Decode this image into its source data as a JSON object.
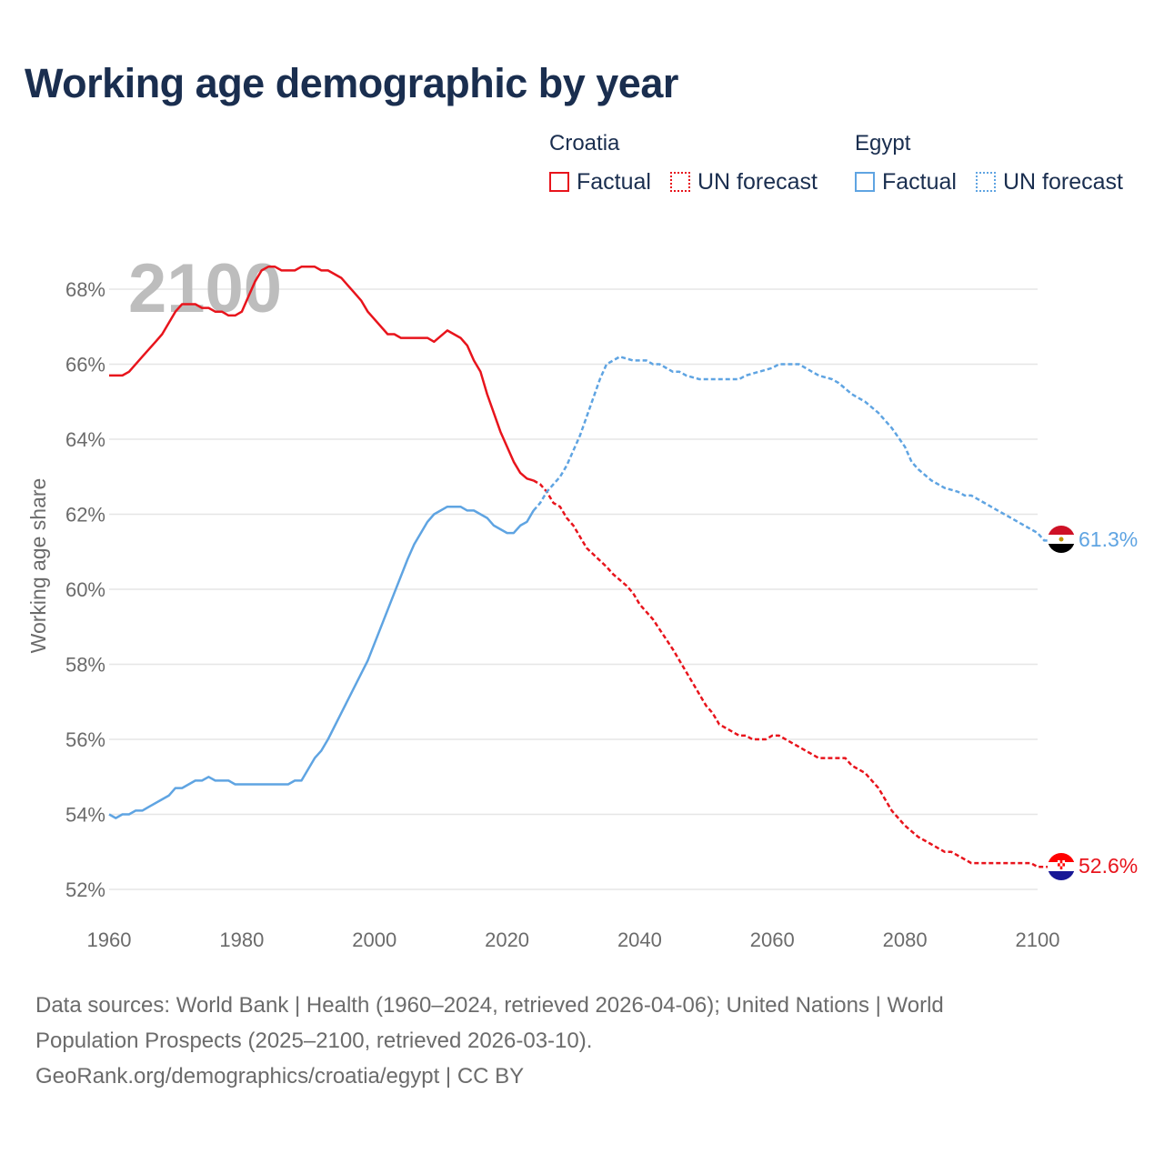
{
  "title": "Working age demographic by year",
  "legend": {
    "groups": [
      {
        "country": "Croatia",
        "color": "#e8141c",
        "factual": "Factual",
        "forecast": "UN forecast"
      },
      {
        "country": "Egypt",
        "color": "#5fa4e2",
        "factual": "Factual",
        "forecast": "UN forecast"
      }
    ]
  },
  "footer": {
    "sources": "Data sources: World Bank | Health (1960–2024, retrieved 2026-04-06); United Nations | World Population Prospects (2025–2100, retrieved 2026-03-10).",
    "link": "GeoRank.org/demographics/croatia/egypt | CC BY"
  },
  "chart_data": {
    "type": "line",
    "title": "Working age demographic by year",
    "xlabel": "",
    "ylabel": "Working age share",
    "xlim": [
      1960,
      2100
    ],
    "ylim": [
      51.5,
      69
    ],
    "x_ticks": [
      1960,
      1980,
      2000,
      2020,
      2040,
      2060,
      2080,
      2100
    ],
    "y_ticks": [
      52,
      54,
      56,
      58,
      60,
      62,
      64,
      66,
      68
    ],
    "y_tick_labels": [
      "52%",
      "54%",
      "56%",
      "58%",
      "60%",
      "62%",
      "64%",
      "66%",
      "68%"
    ],
    "grid": true,
    "current_year": "2100",
    "factual_end_year": 2024,
    "series": [
      {
        "name": "Croatia",
        "color": "#e8141c",
        "end_label": "52.6%",
        "flag": "croatia-flag",
        "points": [
          [
            1960,
            65.7
          ],
          [
            1962,
            65.7
          ],
          [
            1963,
            65.8
          ],
          [
            1965,
            66.2
          ],
          [
            1967,
            66.6
          ],
          [
            1968,
            66.8
          ],
          [
            1970,
            67.4
          ],
          [
            1971,
            67.6
          ],
          [
            1973,
            67.6
          ],
          [
            1974,
            67.5
          ],
          [
            1975,
            67.5
          ],
          [
            1976,
            67.4
          ],
          [
            1977,
            67.4
          ],
          [
            1978,
            67.3
          ],
          [
            1979,
            67.3
          ],
          [
            1980,
            67.4
          ],
          [
            1981,
            67.8
          ],
          [
            1982,
            68.2
          ],
          [
            1983,
            68.5
          ],
          [
            1984,
            68.6
          ],
          [
            1985,
            68.6
          ],
          [
            1986,
            68.5
          ],
          [
            1988,
            68.5
          ],
          [
            1989,
            68.6
          ],
          [
            1991,
            68.6
          ],
          [
            1992,
            68.5
          ],
          [
            1993,
            68.5
          ],
          [
            1995,
            68.3
          ],
          [
            1997,
            67.9
          ],
          [
            1998,
            67.7
          ],
          [
            1999,
            67.4
          ],
          [
            2002,
            66.8
          ],
          [
            2003,
            66.8
          ],
          [
            2004,
            66.7
          ],
          [
            2008,
            66.7
          ],
          [
            2009,
            66.6
          ],
          [
            2011,
            66.9
          ],
          [
            2013,
            66.7
          ],
          [
            2014,
            66.5
          ],
          [
            2015,
            66.1
          ],
          [
            2016,
            65.8
          ],
          [
            2017,
            65.2
          ],
          [
            2018,
            64.7
          ],
          [
            2019,
            64.2
          ],
          [
            2020,
            63.8
          ],
          [
            2021,
            63.4
          ],
          [
            2022,
            63.1
          ],
          [
            2023,
            62.95
          ],
          [
            2024,
            62.9
          ],
          [
            2025,
            62.8
          ],
          [
            2026,
            62.6
          ],
          [
            2027,
            62.3
          ],
          [
            2028,
            62.2
          ],
          [
            2029,
            61.9
          ],
          [
            2030,
            61.7
          ],
          [
            2031,
            61.4
          ],
          [
            2032,
            61.1
          ],
          [
            2035,
            60.6
          ],
          [
            2036,
            60.4
          ],
          [
            2038,
            60.1
          ],
          [
            2039,
            59.9
          ],
          [
            2040,
            59.6
          ],
          [
            2042,
            59.2
          ],
          [
            2045,
            58.4
          ],
          [
            2048,
            57.5
          ],
          [
            2050,
            56.9
          ],
          [
            2051,
            56.7
          ],
          [
            2052,
            56.4
          ],
          [
            2054,
            56.2
          ],
          [
            2055,
            56.1
          ],
          [
            2056,
            56.1
          ],
          [
            2057,
            56.0
          ],
          [
            2059,
            56.0
          ],
          [
            2060,
            56.1
          ],
          [
            2061,
            56.1
          ],
          [
            2065,
            55.7
          ],
          [
            2067,
            55.5
          ],
          [
            2071,
            55.5
          ],
          [
            2072,
            55.3
          ],
          [
            2074,
            55.1
          ],
          [
            2076,
            54.7
          ],
          [
            2078,
            54.1
          ],
          [
            2080,
            53.7
          ],
          [
            2082,
            53.4
          ],
          [
            2084,
            53.2
          ],
          [
            2086,
            53.0
          ],
          [
            2087,
            53.0
          ],
          [
            2089,
            52.8
          ],
          [
            2090,
            52.7
          ],
          [
            2099,
            52.7
          ],
          [
            2100,
            52.6
          ],
          [
            2104,
            52.6
          ]
        ]
      },
      {
        "name": "Egypt",
        "color": "#5fa4e2",
        "end_label": "61.3%",
        "flag": "egypt-flag",
        "points": [
          [
            1960,
            54.0
          ],
          [
            1961,
            53.9
          ],
          [
            1962,
            54.0
          ],
          [
            1963,
            54.0
          ],
          [
            1964,
            54.1
          ],
          [
            1965,
            54.1
          ],
          [
            1966,
            54.2
          ],
          [
            1968,
            54.4
          ],
          [
            1969,
            54.5
          ],
          [
            1970,
            54.7
          ],
          [
            1971,
            54.7
          ],
          [
            1972,
            54.8
          ],
          [
            1973,
            54.9
          ],
          [
            1974,
            54.9
          ],
          [
            1975,
            55.0
          ],
          [
            1976,
            54.9
          ],
          [
            1978,
            54.9
          ],
          [
            1979,
            54.8
          ],
          [
            1987,
            54.8
          ],
          [
            1988,
            54.9
          ],
          [
            1989,
            54.9
          ],
          [
            1990,
            55.2
          ],
          [
            1991,
            55.5
          ],
          [
            1992,
            55.7
          ],
          [
            1993,
            56.0
          ],
          [
            1995,
            56.7
          ],
          [
            1997,
            57.4
          ],
          [
            1999,
            58.1
          ],
          [
            2001,
            59.0
          ],
          [
            2003,
            59.9
          ],
          [
            2005,
            60.8
          ],
          [
            2006,
            61.2
          ],
          [
            2008,
            61.8
          ],
          [
            2009,
            62.0
          ],
          [
            2010,
            62.1
          ],
          [
            2011,
            62.2
          ],
          [
            2013,
            62.2
          ],
          [
            2014,
            62.1
          ],
          [
            2015,
            62.1
          ],
          [
            2017,
            61.9
          ],
          [
            2018,
            61.7
          ],
          [
            2020,
            61.5
          ],
          [
            2021,
            61.5
          ],
          [
            2022,
            61.7
          ],
          [
            2023,
            61.8
          ],
          [
            2024,
            62.1
          ],
          [
            2025,
            62.3
          ],
          [
            2026,
            62.6
          ],
          [
            2027,
            62.8
          ],
          [
            2028,
            63.0
          ],
          [
            2029,
            63.3
          ],
          [
            2030,
            63.7
          ],
          [
            2031,
            64.1
          ],
          [
            2032,
            64.6
          ],
          [
            2033,
            65.1
          ],
          [
            2034,
            65.6
          ],
          [
            2035,
            66.0
          ],
          [
            2036,
            66.1
          ],
          [
            2037,
            66.2
          ],
          [
            2039,
            66.1
          ],
          [
            2041,
            66.1
          ],
          [
            2042,
            66.0
          ],
          [
            2043,
            66.0
          ],
          [
            2044,
            65.9
          ],
          [
            2045,
            65.8
          ],
          [
            2046,
            65.8
          ],
          [
            2047,
            65.7
          ],
          [
            2049,
            65.6
          ],
          [
            2050,
            65.6
          ],
          [
            2054,
            65.6
          ],
          [
            2055,
            65.6
          ],
          [
            2056,
            65.7
          ],
          [
            2058,
            65.8
          ],
          [
            2060,
            65.9
          ],
          [
            2061,
            66.0
          ],
          [
            2064,
            66.0
          ],
          [
            2065,
            65.9
          ],
          [
            2066,
            65.8
          ],
          [
            2067,
            65.7
          ],
          [
            2069,
            65.6
          ],
          [
            2070,
            65.5
          ],
          [
            2072,
            65.2
          ],
          [
            2074,
            65.0
          ],
          [
            2076,
            64.7
          ],
          [
            2078,
            64.3
          ],
          [
            2080,
            63.8
          ],
          [
            2081,
            63.4
          ],
          [
            2082,
            63.2
          ],
          [
            2084,
            62.9
          ],
          [
            2086,
            62.7
          ],
          [
            2088,
            62.6
          ],
          [
            2089,
            62.5
          ],
          [
            2090,
            62.5
          ],
          [
            2092,
            62.3
          ],
          [
            2094,
            62.1
          ],
          [
            2096,
            61.9
          ],
          [
            2098,
            61.7
          ],
          [
            2099,
            61.6
          ],
          [
            2100,
            61.5
          ],
          [
            2101,
            61.3
          ],
          [
            2104,
            61.3
          ]
        ]
      }
    ]
  }
}
